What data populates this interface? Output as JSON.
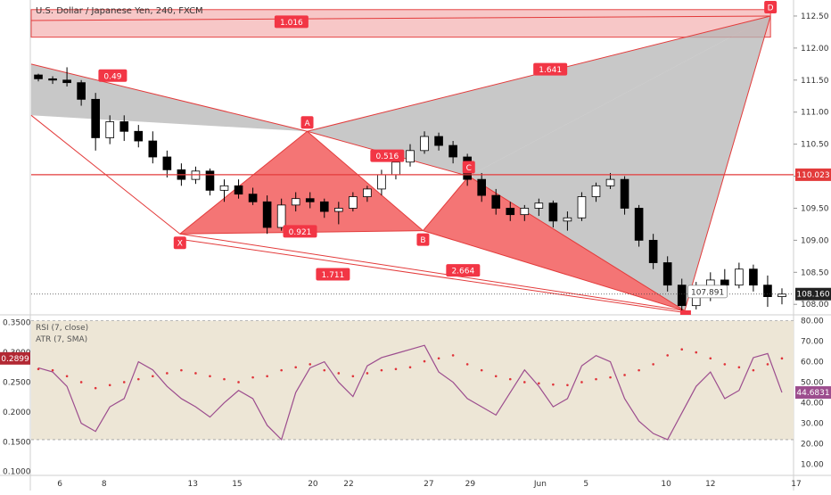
{
  "title": "U.S. Dollar / Japanese Yen, 240, FXCM",
  "colors": {
    "up": "#ffffff",
    "down": "#000000",
    "candle_border": "#000000",
    "harmonic_fill": "#f25d5d",
    "harmonic_line": "#e33b3b",
    "projection_fill": "#b5b5b5",
    "label_bg": "#f23645",
    "rsi_line": "#9c4d8e",
    "atr_dots": "#e0343a",
    "rsi_band": "#ede6d6",
    "current_price_bg": "#222222",
    "rsi_value_bg": "#9c4d8e",
    "atr_value_bg": "#b22833"
  },
  "chart_data": [
    {
      "type": "candlestick",
      "title": "U.S. Dollar / Japanese Yen, 240, FXCM",
      "x_labels": [
        "6",
        "8",
        "13",
        "15",
        "20",
        "22",
        "27",
        "29",
        "Jun",
        "5",
        "10",
        "12",
        "17"
      ],
      "y_ticks": [
        108.0,
        108.5,
        109.0,
        109.5,
        110.0,
        110.5,
        111.0,
        111.5,
        112.0,
        112.5
      ],
      "ylim": [
        107.85,
        112.75
      ],
      "grid": false,
      "price_tags": {
        "current": "108.160",
        "level": "110.023"
      },
      "horizontal_level": 110.023,
      "pattern_points": [
        {
          "name": "X",
          "time": 9.9,
          "price": 109.1
        },
        {
          "name": "A",
          "time": 18.8,
          "price": 110.7
        },
        {
          "name": "B",
          "time": 26.9,
          "price": 109.15
        },
        {
          "name": "C",
          "time": 30.1,
          "price": 110.0
        },
        {
          "name": "D",
          "time": 51.2,
          "price": 112.5
        }
      ],
      "ratios": [
        {
          "label": "0.49",
          "time": 5.2,
          "price": 111.57
        },
        {
          "label": "1.016",
          "time": 17.7,
          "price": 112.41
        },
        {
          "label": "0.516",
          "time": 24.4,
          "price": 110.32
        },
        {
          "label": "0.921",
          "time": 18.3,
          "price": 109.14
        },
        {
          "label": "1.711",
          "time": 20.6,
          "price": 108.47
        },
        {
          "label": "2.664",
          "time": 29.7,
          "price": 108.53
        },
        {
          "label": "1.641",
          "time": 35.8,
          "price": 111.67
        }
      ],
      "annotation": "107.891",
      "candles": [
        [
          111.58,
          111.6,
          111.48,
          111.52
        ],
        [
          111.52,
          111.56,
          111.44,
          111.5
        ],
        [
          111.5,
          111.7,
          111.4,
          111.46
        ],
        [
          111.46,
          111.5,
          111.1,
          111.2
        ],
        [
          111.2,
          111.3,
          110.4,
          110.6
        ],
        [
          110.6,
          110.95,
          110.5,
          110.85
        ],
        [
          110.85,
          110.95,
          110.55,
          110.7
        ],
        [
          110.7,
          110.8,
          110.45,
          110.55
        ],
        [
          110.55,
          110.7,
          110.2,
          110.3
        ],
        [
          110.3,
          110.4,
          109.98,
          110.1
        ],
        [
          110.1,
          110.2,
          109.85,
          109.95
        ],
        [
          109.95,
          110.15,
          109.88,
          110.08
        ],
        [
          110.08,
          110.12,
          109.7,
          109.78
        ],
        [
          109.78,
          109.95,
          109.6,
          109.85
        ],
        [
          109.85,
          109.95,
          109.65,
          109.72
        ],
        [
          109.72,
          109.82,
          109.55,
          109.6
        ],
        [
          109.6,
          109.7,
          109.1,
          109.2
        ],
        [
          109.2,
          109.65,
          109.15,
          109.55
        ],
        [
          109.55,
          109.75,
          109.45,
          109.65
        ],
        [
          109.65,
          109.75,
          109.5,
          109.6
        ],
        [
          109.6,
          109.65,
          109.35,
          109.45
        ],
        [
          109.45,
          109.6,
          109.25,
          109.5
        ],
        [
          109.5,
          109.75,
          109.45,
          109.68
        ],
        [
          109.68,
          109.85,
          109.6,
          109.8
        ],
        [
          109.8,
          110.1,
          109.7,
          110.02
        ],
        [
          110.02,
          110.3,
          109.95,
          110.22
        ],
        [
          110.22,
          110.5,
          110.15,
          110.4
        ],
        [
          110.4,
          110.7,
          110.35,
          110.62
        ],
        [
          110.62,
          110.68,
          110.4,
          110.48
        ],
        [
          110.48,
          110.55,
          110.2,
          110.3
        ],
        [
          110.3,
          110.35,
          109.85,
          109.95
        ],
        [
          109.95,
          110.05,
          109.6,
          109.7
        ],
        [
          109.7,
          109.8,
          109.4,
          109.5
        ],
        [
          109.5,
          109.6,
          109.3,
          109.4
        ],
        [
          109.4,
          109.55,
          109.3,
          109.5
        ],
        [
          109.5,
          109.65,
          109.38,
          109.58
        ],
        [
          109.58,
          109.62,
          109.2,
          109.3
        ],
        [
          109.3,
          109.45,
          109.15,
          109.35
        ],
        [
          109.35,
          109.75,
          109.3,
          109.68
        ],
        [
          109.68,
          109.9,
          109.6,
          109.85
        ],
        [
          109.85,
          110.05,
          109.8,
          109.95
        ],
        [
          109.95,
          110.0,
          109.4,
          109.5
        ],
        [
          109.5,
          109.55,
          108.9,
          109.0
        ],
        [
          109.0,
          109.1,
          108.55,
          108.65
        ],
        [
          108.65,
          108.75,
          108.2,
          108.3
        ],
        [
          108.3,
          108.4,
          107.9,
          107.98
        ],
        [
          107.98,
          108.35,
          107.92,
          108.25
        ],
        [
          108.25,
          108.5,
          108.05,
          108.38
        ],
        [
          108.38,
          108.55,
          108.2,
          108.3
        ],
        [
          108.3,
          108.65,
          108.25,
          108.55
        ],
        [
          108.55,
          108.62,
          108.2,
          108.3
        ],
        [
          108.3,
          108.45,
          107.96,
          108.12
        ],
        [
          108.12,
          108.25,
          108.0,
          108.16
        ]
      ]
    },
    {
      "type": "line",
      "title": "RSI (7, close)",
      "right_ticks": [
        10,
        20,
        30,
        40,
        50,
        60,
        70,
        80
      ],
      "ylim": [
        5,
        82
      ],
      "band": [
        22,
        80
      ],
      "current_value": "44.6831",
      "values": [
        57,
        55,
        48,
        30,
        26,
        38,
        42,
        60,
        56,
        48,
        42,
        38,
        33,
        40,
        46,
        42,
        29,
        22,
        45,
        57,
        60,
        50,
        43,
        58,
        62,
        64,
        66,
        68,
        55,
        50,
        42,
        38,
        34,
        45,
        56,
        48,
        38,
        42,
        58,
        63,
        60,
        42,
        31,
        25,
        22,
        35,
        48,
        55,
        42,
        46,
        62,
        64,
        45
      ]
    },
    {
      "type": "scatter",
      "title": "ATR (7, SMA)",
      "left_ticks": [
        0.1,
        0.15,
        0.2,
        0.25,
        0.3,
        0.35
      ],
      "ylim": [
        0.095,
        0.36
      ],
      "current_value": "0.2899",
      "values": [
        0.272,
        0.27,
        0.26,
        0.25,
        0.24,
        0.245,
        0.25,
        0.255,
        0.26,
        0.265,
        0.27,
        0.265,
        0.26,
        0.255,
        0.25,
        0.258,
        0.26,
        0.27,
        0.275,
        0.28,
        0.27,
        0.265,
        0.26,
        0.265,
        0.27,
        0.272,
        0.275,
        0.285,
        0.29,
        0.295,
        0.28,
        0.27,
        0.26,
        0.255,
        0.25,
        0.248,
        0.246,
        0.245,
        0.25,
        0.255,
        0.258,
        0.262,
        0.27,
        0.28,
        0.295,
        0.305,
        0.3,
        0.29,
        0.28,
        0.275,
        0.27,
        0.28,
        0.2899
      ]
    }
  ]
}
